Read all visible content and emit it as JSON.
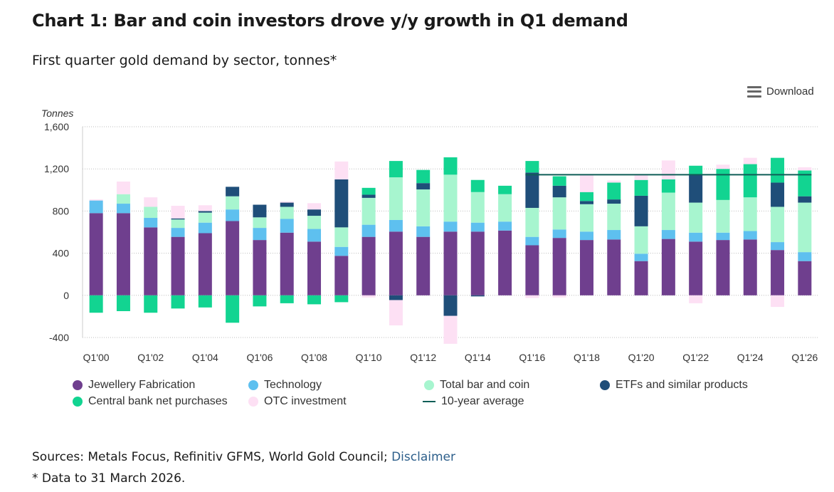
{
  "header": {
    "title": "Chart 1: Bar and coin investors drove y/y growth in Q1 demand",
    "subtitle": "First quarter gold demand by sector, tonnes*",
    "download_label": "Download"
  },
  "footer": {
    "sources_prefix": "Sources: Metals Focus, Refinitiv GFMS, World Gold Council; ",
    "disclaimer_link": "Disclaimer",
    "note": "* Data to 31 March 2026."
  },
  "chart_data": {
    "type": "bar",
    "stacked": true,
    "ylabel": "Tonnes",
    "ylim": [
      -400,
      1600
    ],
    "yticks": [
      -400,
      0,
      400,
      800,
      1200,
      1600
    ],
    "ytick_labels": [
      "-400",
      "0",
      "400",
      "800",
      "1,200",
      "1,600"
    ],
    "grid": true,
    "legend_position": "bottom",
    "categories": [
      "Q1'00",
      "Q1'01",
      "Q1'02",
      "Q1'03",
      "Q1'04",
      "Q1'05",
      "Q1'06",
      "Q1'07",
      "Q1'08",
      "Q1'09",
      "Q1'10",
      "Q1'11",
      "Q1'12",
      "Q1'13",
      "Q1'14",
      "Q1'15",
      "Q1'16",
      "Q1'17",
      "Q1'18",
      "Q1'19",
      "Q1'20",
      "Q1'21",
      "Q1'22",
      "Q1'23",
      "Q1'24",
      "Q1'25",
      "Q1'26"
    ],
    "xtick_labels": [
      "Q1'00",
      "",
      "Q1'02",
      "",
      "Q1'04",
      "",
      "Q1'06",
      "",
      "Q1'08",
      "",
      "Q1'10",
      "",
      "Q1'12",
      "",
      "Q1'14",
      "",
      "Q1'16",
      "",
      "Q1'18",
      "",
      "Q1'20",
      "",
      "Q1'22",
      "",
      "Q1'24",
      "",
      "Q1'26"
    ],
    "series": [
      {
        "name": "Jewellery Fabrication",
        "color": "#6f3f8e",
        "values": [
          780,
          780,
          645,
          555,
          590,
          705,
          525,
          595,
          510,
          375,
          555,
          605,
          555,
          605,
          605,
          615,
          475,
          545,
          525,
          530,
          325,
          535,
          510,
          525,
          530,
          430,
          325
        ]
      },
      {
        "name": "Technology",
        "color": "#5ec0ef",
        "values": [
          120,
          90,
          90,
          85,
          100,
          110,
          115,
          130,
          120,
          85,
          115,
          110,
          100,
          95,
          85,
          85,
          80,
          80,
          80,
          90,
          70,
          85,
          85,
          70,
          80,
          75,
          85
        ]
      },
      {
        "name": "Total bar and coin",
        "color": "#a7f5cf",
        "values": [
          0,
          90,
          105,
          80,
          95,
          125,
          100,
          115,
          125,
          185,
          255,
          405,
          350,
          445,
          290,
          260,
          275,
          305,
          260,
          250,
          260,
          355,
          285,
          310,
          320,
          335,
          470
        ]
      },
      {
        "name": "ETFs and similar products",
        "color": "#1f4e79",
        "values": [
          0,
          0,
          0,
          10,
          15,
          90,
          120,
          40,
          60,
          455,
          30,
          -45,
          60,
          -195,
          -10,
          0,
          335,
          110,
          30,
          40,
          290,
          0,
          265,
          0,
          0,
          230,
          60
        ]
      },
      {
        "name": "Central bank net purchases",
        "color": "#12d491",
        "values": [
          -165,
          -150,
          -165,
          -125,
          -115,
          -260,
          -105,
          -75,
          -85,
          -65,
          65,
          155,
          125,
          165,
          115,
          80,
          110,
          90,
          85,
          160,
          150,
          125,
          85,
          295,
          315,
          235,
          245
        ]
      },
      {
        "name": "OTC investment",
        "color": "#fde0f4",
        "values": [
          10,
          120,
          90,
          120,
          55,
          0,
          0,
          10,
          60,
          170,
          -20,
          -240,
          0,
          -265,
          0,
          0,
          -25,
          -20,
          165,
          20,
          55,
          180,
          -75,
          40,
          60,
          -110,
          30
        ]
      }
    ],
    "ten_year_average": {
      "name": "10-year average",
      "color": "#0f5e58",
      "value": 1145,
      "from": "Q1'16",
      "to": "Q1'26"
    }
  }
}
